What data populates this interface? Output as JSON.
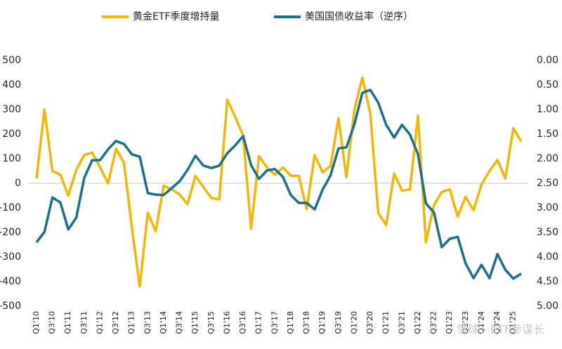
{
  "chart_data": {
    "type": "line",
    "categories": [
      "Q1'10",
      null,
      "Q3'10",
      null,
      "Q1'11",
      null,
      "Q3'11",
      null,
      "Q1'12",
      null,
      "Q3'12",
      null,
      "Q1'13",
      null,
      "Q3'13",
      null,
      "Q1'14",
      null,
      "Q3'14",
      null,
      "Q1'15",
      null,
      "Q3'15",
      null,
      "Q1'16",
      null,
      "Q3'16",
      null,
      "Q1'17",
      null,
      "Q3'17",
      null,
      "Q1'18",
      null,
      "Q3'18",
      null,
      "Q1'19",
      null,
      "Q3'19",
      null,
      "Q1'20",
      null,
      "Q3'20",
      null,
      "Q1'21",
      null,
      "Q3'21",
      null,
      "Q1'22",
      null,
      "Q3'22",
      null,
      "Q1'23",
      null,
      "Q3'23",
      null,
      "Q1'24",
      null,
      "Q3'24",
      null,
      "Q1'25",
      null
    ],
    "series": [
      {
        "name": "黄金ETF季度增持量",
        "color": "#f2b705",
        "values": [
          20,
          300,
          50,
          35,
          -50,
          55,
          115,
          125,
          65,
          0,
          140,
          85,
          -180,
          -420,
          -120,
          -195,
          -10,
          -25,
          -45,
          -85,
          30,
          -15,
          -60,
          -65,
          340,
          270,
          195,
          -185,
          110,
          65,
          35,
          65,
          30,
          30,
          -105,
          115,
          45,
          70,
          265,
          25,
          300,
          430,
          285,
          -120,
          -170,
          40,
          -30,
          -25,
          275,
          -240,
          -90,
          -35,
          -25,
          -135,
          -55,
          -110,
          -5,
          50,
          95,
          20,
          225,
          170
        ]
      },
      {
        "name": "美国国债收益率（逆序）",
        "color": "#1b6f8e",
        "axis": "y2",
        "values": [
          3.7,
          3.49,
          2.79,
          2.89,
          3.44,
          3.2,
          2.39,
          2.03,
          2.03,
          1.81,
          1.64,
          1.7,
          1.91,
          1.96,
          2.7,
          2.73,
          2.74,
          2.6,
          2.46,
          2.23,
          1.94,
          2.14,
          2.19,
          2.14,
          1.89,
          1.73,
          1.54,
          2.13,
          2.41,
          2.24,
          2.21,
          2.37,
          2.74,
          2.9,
          2.9,
          3.03,
          2.63,
          2.34,
          1.79,
          1.77,
          1.3,
          0.66,
          0.6,
          0.86,
          1.31,
          1.57,
          1.31,
          1.51,
          1.91,
          2.91,
          3.09,
          3.8,
          3.63,
          3.59,
          4.13,
          4.43,
          4.16,
          4.43,
          3.94,
          4.26,
          4.44,
          4.34
        ]
      }
    ],
    "ylim": [
      -500,
      500
    ],
    "yticks": [
      -500,
      -400,
      -300,
      -200,
      -100,
      0,
      100,
      200,
      300,
      400,
      500
    ],
    "y2lim": [
      0,
      5
    ],
    "y2_inverted": true,
    "y2ticks": [
      {
        "value": 0,
        "label": "0.00"
      },
      {
        "value": 0.5,
        "label": "0.50"
      },
      {
        "value": 1,
        "label": "1.00"
      },
      {
        "value": 1.5,
        "label": "1.50"
      },
      {
        "value": 2,
        "label": "2.00"
      },
      {
        "value": 2.5,
        "label": "2.50"
      },
      {
        "value": 3,
        "label": "3.00"
      },
      {
        "value": 3.5,
        "label": "3.50"
      },
      {
        "value": 4,
        "label": "4.00"
      },
      {
        "value": 4.5,
        "label": "4.50"
      },
      {
        "value": 5,
        "label": "5.00"
      }
    ],
    "zero_line": true,
    "legend": "top",
    "watermark": "雪球：ETF参谋长"
  }
}
